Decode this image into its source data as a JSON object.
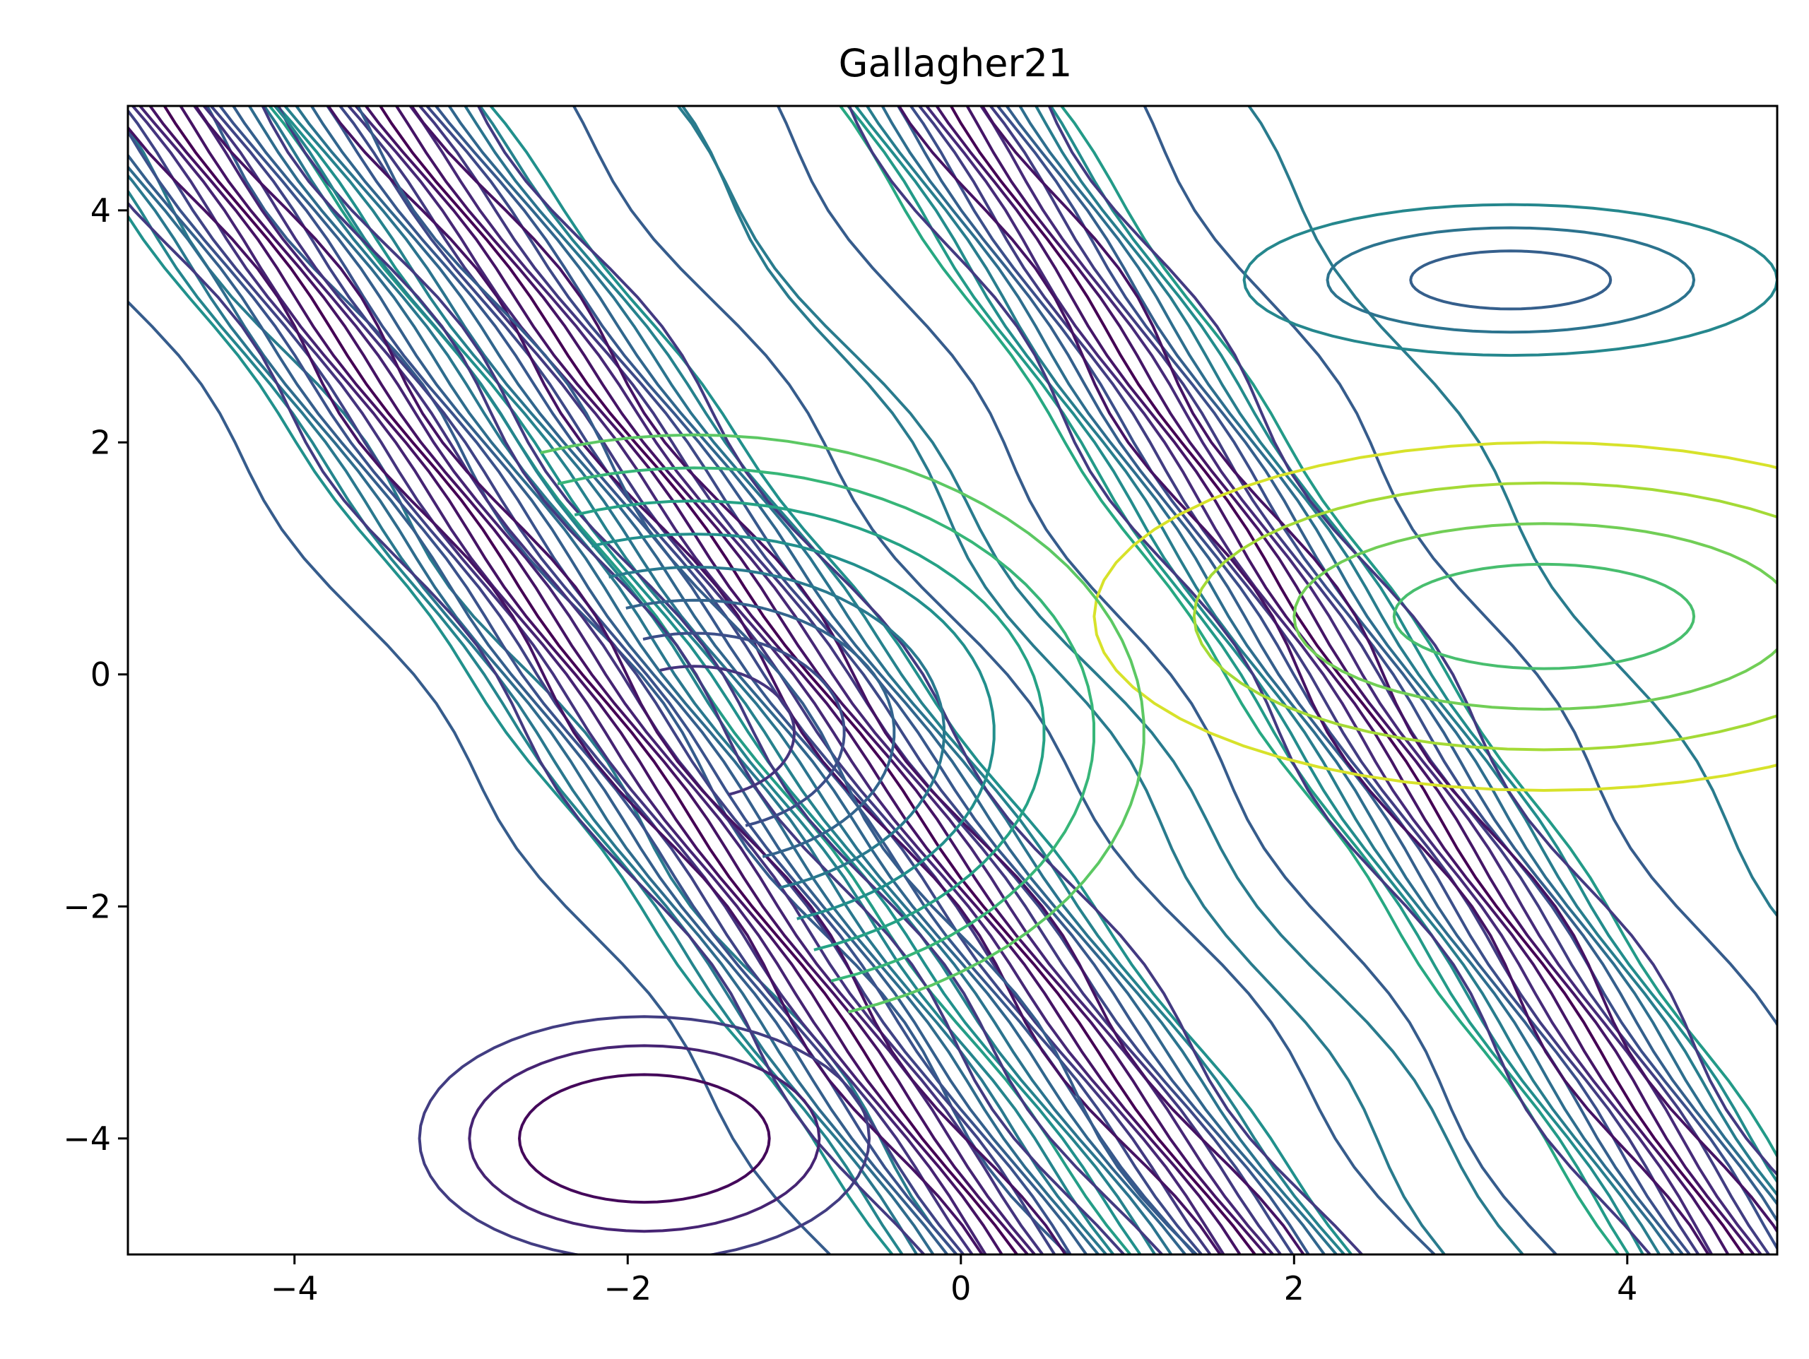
{
  "chart_data": {
    "type": "contour",
    "title": "Gallagher21",
    "xlabel": "",
    "ylabel": "",
    "xlim": [
      -5,
      4.9
    ],
    "ylim": [
      -5,
      4.9
    ],
    "x_ticks": [
      -4,
      -2,
      0,
      2,
      4
    ],
    "y_ticks": [
      -4,
      -2,
      0,
      2,
      4
    ],
    "x_tick_labels": [
      "−4",
      "−2",
      "0",
      "2",
      "4"
    ],
    "y_tick_labels": [
      "−4",
      "−2",
      "0",
      "2",
      "4"
    ],
    "colormap": "viridis",
    "colormap_stops": [
      "#440154",
      "#472d7b",
      "#3b528b",
      "#2c728e",
      "#21918c",
      "#28ae80",
      "#5ec962",
      "#addc30",
      "#fde725"
    ],
    "contour_levels": 20,
    "grid": false,
    "legend": "none",
    "ridges": [
      {
        "slope": -2.1,
        "intercept": 4.8,
        "low_side_offsets": [
          0.25,
          0.6,
          1.1,
          1.7
        ],
        "level_max": 0.6
      },
      {
        "slope": -1.9,
        "intercept": -1.7,
        "low_side_offsets": [
          0.25,
          0.6,
          1.1,
          1.7
        ],
        "level_max": 0.55
      },
      {
        "slope": -1.95,
        "intercept": -4.4,
        "low_side_offsets": [
          0.25,
          0.6,
          1.1
        ],
        "level_max": 0.5
      }
    ],
    "ellipse_minima": [
      {
        "cx": -1.9,
        "cy": -4.0,
        "rx": [
          0.75,
          1.05,
          1.35
        ],
        "ry": [
          0.55,
          0.8,
          1.05
        ],
        "level": 0.02
      },
      {
        "cx": 3.5,
        "cy": 0.5,
        "rx": [
          0.9,
          1.5,
          2.1,
          2.7
        ],
        "ry": [
          0.45,
          0.8,
          1.15,
          1.5
        ],
        "level": 0.7
      },
      {
        "cx": 3.3,
        "cy": 3.4,
        "rx": [
          0.6,
          1.1,
          1.6
        ],
        "ry": [
          0.25,
          0.45,
          0.65
        ],
        "level": 0.3
      }
    ],
    "arc_basins": [
      {
        "cx": -1.6,
        "cy": -0.5,
        "radii": [
          0.6,
          0.9,
          1.2,
          1.5,
          1.8,
          2.1,
          2.4,
          2.7
        ],
        "start_deg": -70,
        "end_deg": 110
      }
    ]
  }
}
